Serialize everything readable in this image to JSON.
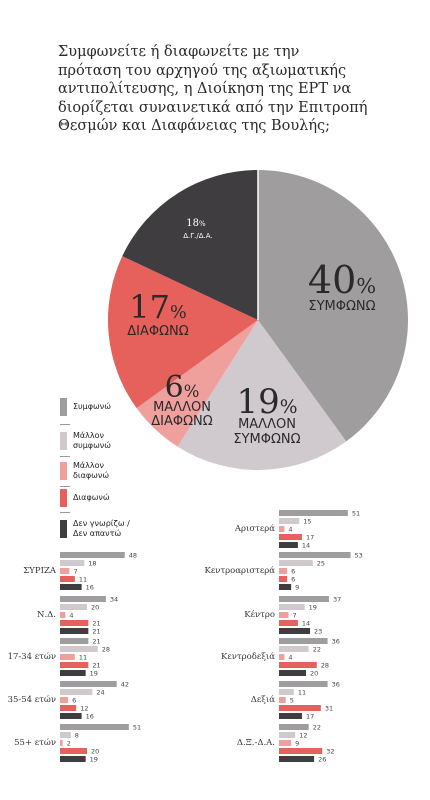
{
  "title_lines": [
    "Συμφωνείτε ή διαφωνείτε με την",
    "πρόταση του αρχηγού της αξιωματικής",
    "αντιπολίτευσης, η Διοίκηση της ΕΡΤ να",
    "διορίζεται συναινετικά από την Επιτροπή",
    "Θεσμών και Διαφάνειας της Βουλής;"
  ],
  "colors": {
    "agree": "#a09d9f",
    "rather_agree": "#d0cacf",
    "rather_disagree": "#f0a09c",
    "disagree": "#e6605c",
    "dk": "#403d40"
  },
  "legend": [
    {
      "key": "agree",
      "label": "Συμφωνώ"
    },
    {
      "key": "rather_agree",
      "label": "Μάλλον συμφωνώ"
    },
    {
      "key": "rather_disagree",
      "label": "Μάλλον διαφωνώ"
    },
    {
      "key": "disagree",
      "label": "Διαφωνώ"
    },
    {
      "key": "dk",
      "label": "Δεν γνωρίζω / Δεν απαντώ"
    }
  ],
  "legend_lines": [
    [
      "Συμφωνώ"
    ],
    [
      "Μάλλον",
      "συμφωνώ"
    ],
    [
      "Μάλλον",
      "διαφωνώ"
    ],
    [
      "Διαφωνώ"
    ],
    [
      "Δεν γνωρίζω /",
      "Δεν απαντώ"
    ]
  ],
  "chart_data": [
    {
      "type": "pie",
      "slices": [
        {
          "key": "agree",
          "value": 40,
          "num": "40",
          "pct": "%",
          "label": "ΣΥΜΦΩΝΩ"
        },
        {
          "key": "rather_agree",
          "value": 19,
          "num": "19",
          "pct": "%",
          "label": "ΜΑΛΛΟΝ ΣΥΜΦΩΝΩ"
        },
        {
          "key": "rather_disagree",
          "value": 6,
          "num": "6",
          "pct": "%",
          "label": "ΜΑΛΛΟΝ ΔΙΑΦΩΝΩ"
        },
        {
          "key": "disagree",
          "value": 17,
          "num": "17",
          "pct": "%",
          "label": "ΔΙΑΦΩΝΩ"
        },
        {
          "key": "dk",
          "value": 18,
          "num": "18",
          "pct": "%",
          "label": "Δ.Γ./Δ.Α."
        }
      ]
    },
    {
      "type": "bar",
      "orientation": "horizontal",
      "series_order": [
        "agree",
        "rather_agree",
        "rather_disagree",
        "disagree",
        "dk"
      ],
      "groups": [
        {
          "name": "ΣΥΡΙΖΑ",
          "values": [
            48,
            18,
            7,
            11,
            16
          ]
        },
        {
          "name": "Ν.Δ.",
          "values": [
            34,
            20,
            4,
            21,
            21
          ]
        },
        {
          "name": "17-34 ετών",
          "values": [
            21,
            28,
            11,
            21,
            19
          ]
        },
        {
          "name": "35-54 ετών",
          "values": [
            42,
            24,
            6,
            12,
            16
          ]
        },
        {
          "name": "55+ ετών",
          "values": [
            51,
            8,
            2,
            20,
            19
          ]
        }
      ]
    },
    {
      "type": "bar",
      "orientation": "horizontal",
      "series_order": [
        "agree",
        "rather_agree",
        "rather_disagree",
        "disagree",
        "dk"
      ],
      "groups": [
        {
          "name": "Αριστερά",
          "values": [
            51,
            15,
            4,
            17,
            14
          ]
        },
        {
          "name": "Κεντροαριστερά",
          "values": [
            53,
            25,
            6,
            6,
            9
          ]
        },
        {
          "name": "Κέντρο",
          "values": [
            37,
            19,
            7,
            14,
            23
          ]
        },
        {
          "name": "Κεντροδεξιά",
          "values": [
            36,
            22,
            4,
            28,
            20
          ]
        },
        {
          "name": "Δεξιά",
          "values": [
            36,
            11,
            5,
            31,
            17
          ]
        },
        {
          "name": "Δ.Ξ.-Δ.Α.",
          "values": [
            22,
            12,
            9,
            32,
            26
          ]
        }
      ]
    }
  ]
}
